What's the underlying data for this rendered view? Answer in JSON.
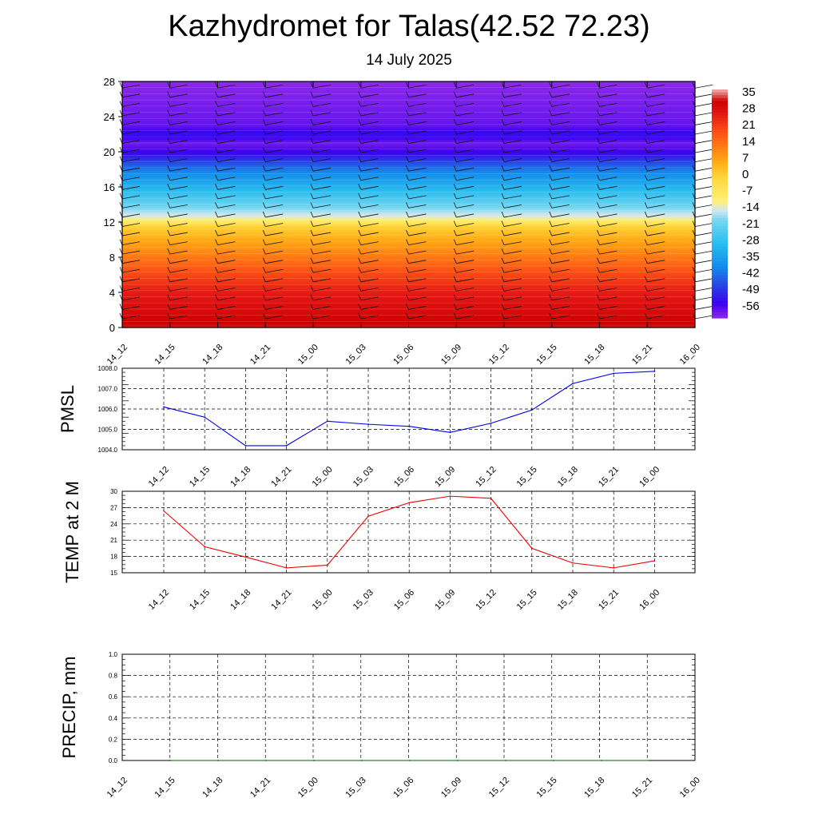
{
  "title": "Kazhydromet for Talas(42.52 72.23)",
  "subtitle": "14 July 2025",
  "chart_data": [
    {
      "type": "heatmap",
      "name": "vertical-cross-section",
      "xlabel": "",
      "ylabel": "",
      "x_ticks": [
        "14_12",
        "14_15",
        "14_18",
        "14_21",
        "15_00",
        "15_03",
        "15_06",
        "15_09",
        "15_12",
        "15_15",
        "15_18",
        "15_21",
        "16_00"
      ],
      "y_ticks": [
        0,
        4,
        8,
        12,
        16,
        20,
        24,
        28
      ],
      "ylim": [
        0,
        28
      ],
      "colorbar_labels": [
        "35",
        "28",
        "21",
        "14",
        "7",
        "0",
        "-7",
        "-14",
        "-21",
        "-28",
        "-35",
        "-42",
        "-49",
        "-56"
      ],
      "colorbar_range": [
        -60,
        38
      ],
      "temperature_profile": [
        {
          "height": 0,
          "value": 34
        },
        {
          "height": 2,
          "value": 30
        },
        {
          "height": 4,
          "value": 27
        },
        {
          "height": 6,
          "value": 21
        },
        {
          "height": 8,
          "value": 14
        },
        {
          "height": 10,
          "value": 7
        },
        {
          "height": 11.5,
          "value": 1
        },
        {
          "height": 12.5,
          "value": -12
        },
        {
          "height": 14,
          "value": -20
        },
        {
          "height": 16,
          "value": -30
        },
        {
          "height": 18,
          "value": -40
        },
        {
          "height": 20,
          "value": -54
        },
        {
          "height": 21,
          "value": -58
        },
        {
          "height": 22,
          "value": -52
        },
        {
          "height": 23,
          "value": -57
        },
        {
          "height": 28,
          "value": -60
        }
      ],
      "grid": false,
      "overlay": "wind barbs"
    },
    {
      "type": "line",
      "ylabel": "PMSL",
      "categories": [
        "14_12",
        "14_15",
        "14_18",
        "14_21",
        "15_00",
        "15_03",
        "15_06",
        "15_09",
        "15_12",
        "15_15",
        "15_18",
        "15_21",
        "16_00"
      ],
      "series": [
        {
          "values": [
            1006.1,
            1005.6,
            1004.2,
            1004.2,
            1005.4,
            1005.25,
            1005.15,
            1004.85,
            1005.3,
            1005.95,
            1007.25,
            1007.75,
            1007.85
          ]
        }
      ],
      "y_ticks": [
        "1004.0",
        "1005.0",
        "1006.0",
        "1007.0",
        "1008.0"
      ],
      "ylim": [
        1004,
        1008
      ],
      "color": "#0000ee",
      "grid": true
    },
    {
      "type": "line",
      "ylabel": "TEMP at 2 M",
      "categories": [
        "14_12",
        "14_15",
        "14_18",
        "14_21",
        "15_00",
        "15_03",
        "15_06",
        "15_09",
        "15_12",
        "15_15",
        "15_18",
        "15_21",
        "16_00"
      ],
      "series": [
        {
          "values": [
            26.4,
            19.8,
            17.9,
            15.9,
            16.4,
            25.4,
            27.9,
            29.1,
            28.7,
            19.5,
            16.8,
            15.9,
            17.2
          ]
        }
      ],
      "y_ticks": [
        "15",
        "18",
        "21",
        "24",
        "27",
        "30"
      ],
      "ylim": [
        15,
        30
      ],
      "color": "#ee0000",
      "grid": true
    },
    {
      "type": "line",
      "ylabel": "PRECIP, mm",
      "categories": [
        "14_15",
        "14_18",
        "14_21",
        "15_00",
        "15_03",
        "15_06",
        "15_09",
        "15_12",
        "15_15",
        "15_18",
        "15_21"
      ],
      "x_ticks": [
        "14_12",
        "14_15",
        "14_18",
        "14_21",
        "15_00",
        "15_03",
        "15_06",
        "15_09",
        "15_12",
        "15_15",
        "15_18",
        "15_21",
        "16_00"
      ],
      "series": [
        {
          "values": [
            0,
            0,
            0,
            0,
            0,
            0,
            0,
            0,
            0,
            0,
            0
          ]
        }
      ],
      "y_ticks": [
        "0.0",
        "0.2",
        "0.4",
        "0.6",
        "0.8",
        "1.0"
      ],
      "ylim": [
        0,
        1
      ],
      "color": "#006400",
      "grid": true
    }
  ]
}
